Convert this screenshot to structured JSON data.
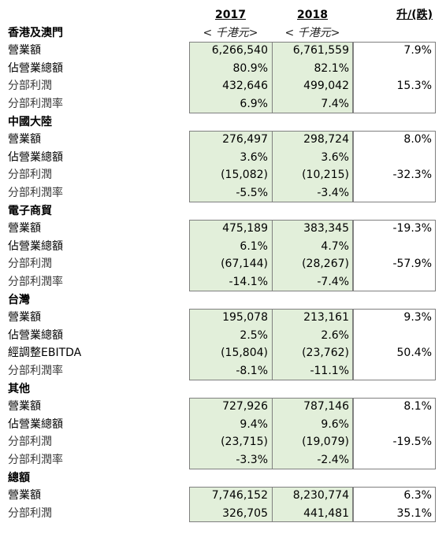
{
  "header": {
    "year1": "2017",
    "year2": "2018",
    "change": "升/(跌)"
  },
  "sections": [
    {
      "title": "香港及澳門",
      "unit1": "< 千港元>",
      "unit2": "< 千港元>",
      "rows": [
        {
          "label": "營業額",
          "v1": "6,266,540",
          "v2": "6,761,559",
          "change": "7.9%"
        },
        {
          "label": "佔營業總額",
          "v1": "80.9%",
          "v2": "82.1%"
        },
        {
          "label": "分部利潤",
          "v1": "432,646",
          "v2": "499,042",
          "change": "15.3%"
        },
        {
          "label": "分部利潤率",
          "v1": "6.9%",
          "v2": "7.4%"
        }
      ]
    },
    {
      "title": "中國大陸",
      "rows": [
        {
          "label": "營業額",
          "v1": "276,497",
          "v2": "298,724",
          "change": "8.0%"
        },
        {
          "label": "佔營業總額",
          "v1": "3.6%",
          "v2": "3.6%"
        },
        {
          "label": "分部利潤",
          "v1": "(15,082)",
          "v2": "(10,215)",
          "change": "-32.3%"
        },
        {
          "label": "分部利潤率",
          "v1": "-5.5%",
          "v2": "-3.4%"
        }
      ]
    },
    {
      "title": "電子商貿",
      "rows": [
        {
          "label": "營業額",
          "v1": "475,189",
          "v2": "383,345",
          "change": "-19.3%"
        },
        {
          "label": "佔營業總額",
          "v1": "6.1%",
          "v2": "4.7%"
        },
        {
          "label": "分部利潤",
          "v1": "(67,144)",
          "v2": "(28,267)",
          "change": "-57.9%"
        },
        {
          "label": "分部利潤率",
          "v1": "-14.1%",
          "v2": "-7.4%"
        }
      ]
    },
    {
      "title": "台灣",
      "rows": [
        {
          "label": "營業額",
          "v1": "195,078",
          "v2": "213,161",
          "change": "9.3%"
        },
        {
          "label": "佔營業總額",
          "v1": "2.5%",
          "v2": "2.6%"
        },
        {
          "label": "經調整EBITDA",
          "v1": "(15,804)",
          "v2": "(23,762)",
          "change": "50.4%"
        },
        {
          "label": "分部利潤率",
          "v1": "-8.1%",
          "v2": "-11.1%"
        }
      ]
    },
    {
      "title": "其他",
      "rows": [
        {
          "label": "營業額",
          "v1": "727,926",
          "v2": "787,146",
          "change": "8.1%"
        },
        {
          "label": "佔營業總額",
          "v1": "9.4%",
          "v2": "9.6%"
        },
        {
          "label": "分部利潤",
          "v1": "(23,715)",
          "v2": "(19,079)",
          "change": "-19.5%"
        },
        {
          "label": "分部利潤率",
          "v1": "-3.3%",
          "v2": "-2.4%"
        }
      ]
    },
    {
      "title": "總額",
      "rows": [
        {
          "label": "營業額",
          "v1": "7,746,152",
          "v2": "8,230,774",
          "change": "6.3%"
        },
        {
          "label": "分部利潤",
          "v1": "326,705",
          "v2": "441,481",
          "change": "35.1%"
        }
      ]
    }
  ]
}
